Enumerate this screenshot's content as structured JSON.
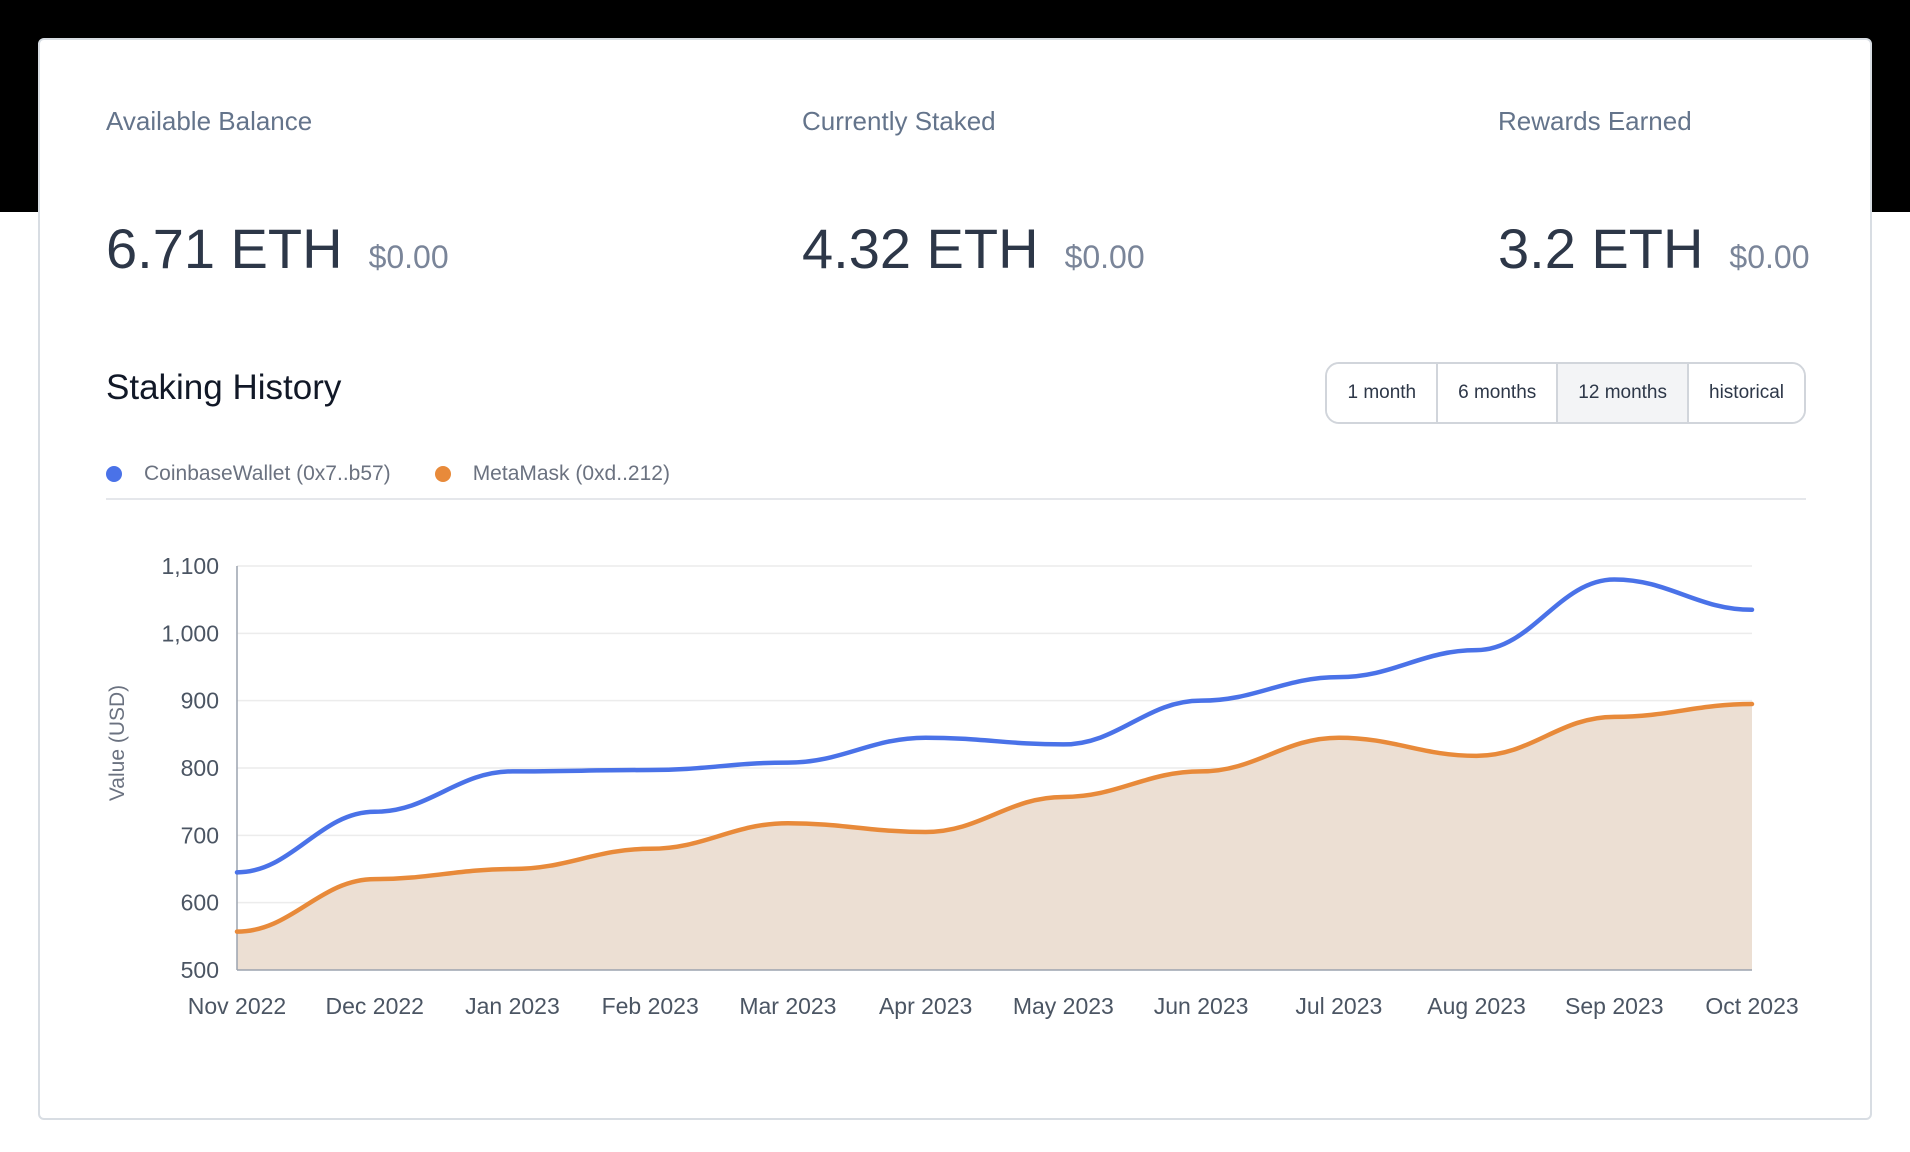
{
  "stats": [
    {
      "label": "Available Balance",
      "value": "6.71 ETH",
      "fiat": "$0.00"
    },
    {
      "label": "Currently Staked",
      "value": "4.32 ETH",
      "fiat": "$0.00"
    },
    {
      "label": "Rewards Earned",
      "value": "3.2 ETH",
      "fiat": "$0.00"
    }
  ],
  "history": {
    "title": "Staking History",
    "legend": [
      {
        "label": "CoinbaseWallet (0x7..b57)",
        "color": "#4a72e8"
      },
      {
        "label": "MetaMask (0xd..212)",
        "color": "#e88a3a"
      }
    ],
    "ranges": [
      "1 month",
      "6 months",
      "12 months",
      "historical"
    ],
    "active_range": "12 months"
  },
  "chart_data": {
    "type": "line",
    "ylabel": "Value (USD)",
    "ylim": [
      500,
      1100
    ],
    "yticks": [
      500,
      600,
      700,
      800,
      900,
      1000,
      1100
    ],
    "ytick_labels": [
      "500",
      "600",
      "700",
      "800",
      "900",
      "1,000",
      "1,100"
    ],
    "categories": [
      "Nov 2022",
      "Dec 2022",
      "Jan 2023",
      "Feb 2023",
      "Mar 2023",
      "Apr 2023",
      "May 2023",
      "Jun 2023",
      "Jul 2023",
      "Aug 2023",
      "Sep 2023",
      "Oct 2023"
    ],
    "series": [
      {
        "name": "CoinbaseWallet (0x7..b57)",
        "color": "#4a72e8",
        "fill": false,
        "values": [
          645,
          735,
          795,
          797,
          808,
          845,
          835,
          900,
          935,
          975,
          1080,
          1035
        ]
      },
      {
        "name": "MetaMask (0xd..212)",
        "color": "#e88a3a",
        "fill": true,
        "fill_color": "#ecdfd3",
        "values": [
          557,
          635,
          650,
          680,
          718,
          705,
          757,
          795,
          845,
          818,
          876,
          895
        ]
      }
    ],
    "grid": true
  }
}
